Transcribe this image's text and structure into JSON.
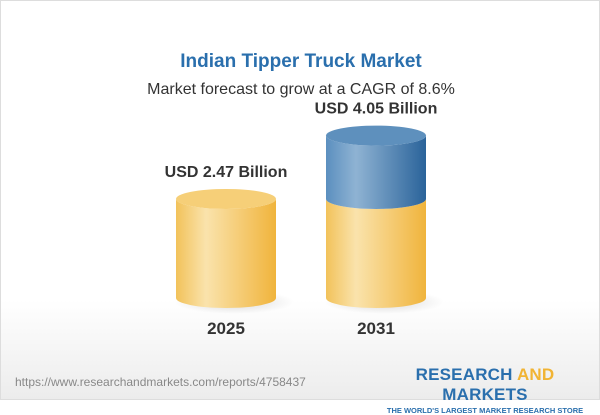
{
  "header": {
    "title": "Indian Tipper Truck Market",
    "subtitle": "Market forecast to grow at a CAGR of 8.6%"
  },
  "chart_data": {
    "type": "bar",
    "style": "3d-cylinder",
    "categories": [
      "2025",
      "2031"
    ],
    "values": [
      2.47,
      4.05
    ],
    "data_labels": [
      "USD 2.47 Billion",
      "USD 4.05 Billion"
    ],
    "unit": "USD Billion",
    "colors": {
      "base": "#f3c45c",
      "growth": "#3f7eb3"
    }
  },
  "footer": {
    "url": "https://www.researchandmarkets.com/reports/4758437",
    "logo": {
      "part1": "RESEARCH",
      "part2": "AND",
      "part3": "MARKETS",
      "tagline": "THE WORLD'S LARGEST MARKET RESEARCH STORE"
    }
  }
}
